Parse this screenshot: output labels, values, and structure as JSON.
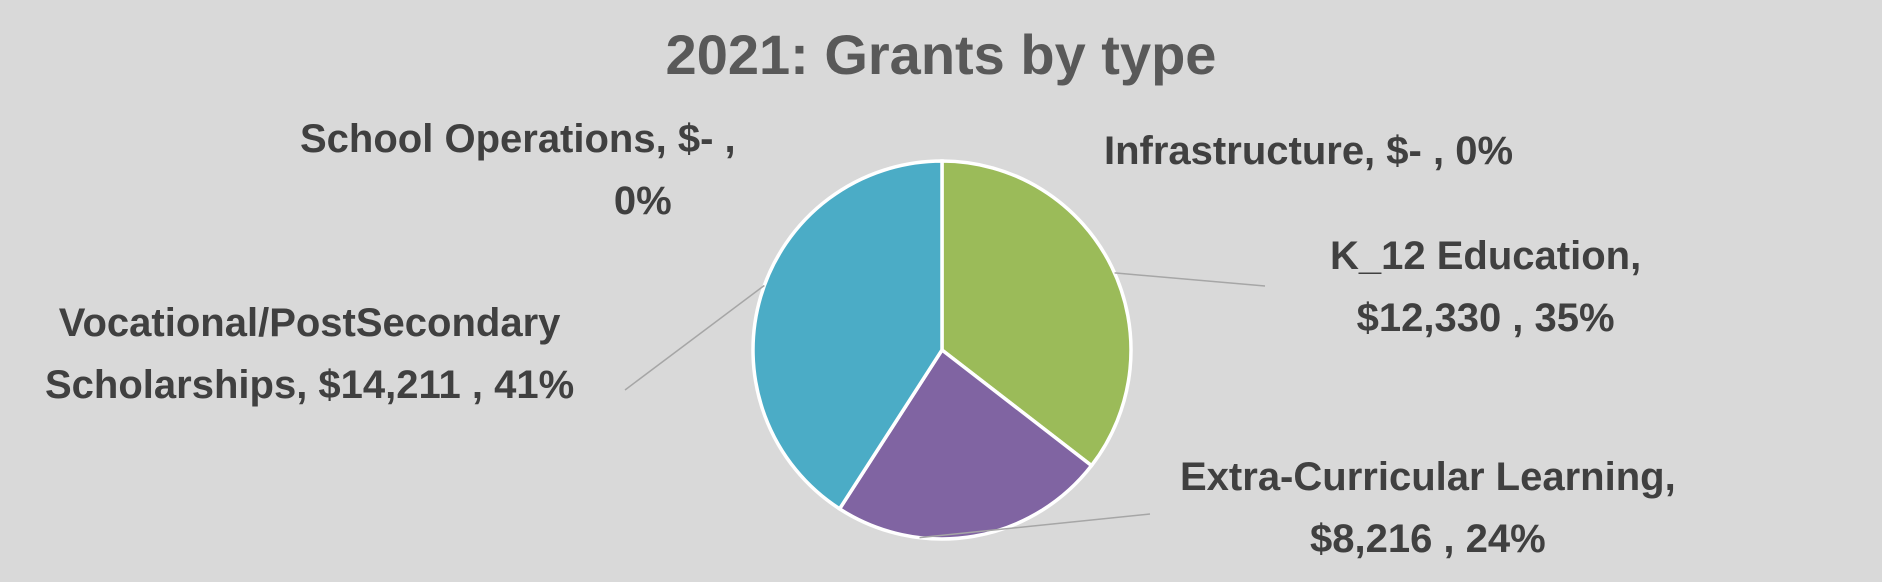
{
  "chart_data": {
    "type": "pie",
    "title": "2021: Grants by type",
    "slices": [
      {
        "name": "Infrastructure",
        "value_text": "$-",
        "percent_text": "0%",
        "value": 0,
        "color": "#9bbb59"
      },
      {
        "name": "K_12 Education",
        "value_text": "$12,330",
        "percent_text": "35%",
        "value": 12330,
        "color": "#9bbb59"
      },
      {
        "name": "Extra-Curricular Learning",
        "value_text": "$8,216",
        "percent_text": "24%",
        "value": 8216,
        "color": "#8064a2"
      },
      {
        "name": "Vocational/PostSecondary Scholarships",
        "value_text": "$14,211",
        "percent_text": "41%",
        "value": 14211,
        "color": "#4bacc6"
      },
      {
        "name": "School Operations",
        "value_text": "$-",
        "percent_text": "0%",
        "value": 0,
        "color": "#4bacc6"
      }
    ],
    "labels": {
      "infrastructure": [
        "Infrastructure,  $-   , 0%"
      ],
      "k12": [
        "K_12 Education,",
        "$12,330 , 35%"
      ],
      "extra": [
        "Extra-Curricular Learning,",
        "$8,216 , 24%"
      ],
      "vocational": [
        "Vocational/PostSecondary",
        "Scholarships,  $14,211 , 41%"
      ],
      "school_ops": [
        "School Operations,  $-   ,",
        "0%"
      ]
    }
  }
}
